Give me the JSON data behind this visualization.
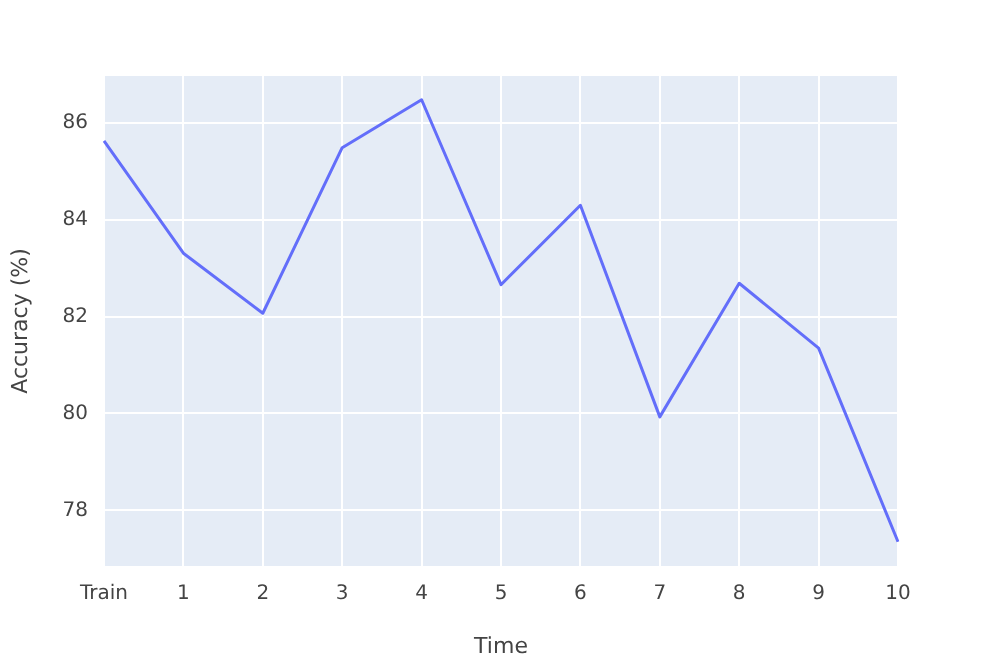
{
  "chart_data": {
    "type": "line",
    "xlabel": "Time",
    "ylabel": "Accuracy (%)",
    "categories": [
      "Train",
      "1",
      "2",
      "3",
      "4",
      "5",
      "6",
      "7",
      "8",
      "9",
      "10"
    ],
    "series": [
      {
        "color": "#636efa",
        "values": [
          85.63,
          83.31,
          82.07,
          85.49,
          86.48,
          82.66,
          84.3,
          79.93,
          82.69,
          81.35,
          77.35
        ]
      }
    ],
    "ylim": [
      76.85,
      86.97
    ],
    "yticks": [
      78,
      80,
      82,
      84,
      86
    ],
    "grid": true,
    "legend": false,
    "marker": "none",
    "line_style": "solid"
  }
}
